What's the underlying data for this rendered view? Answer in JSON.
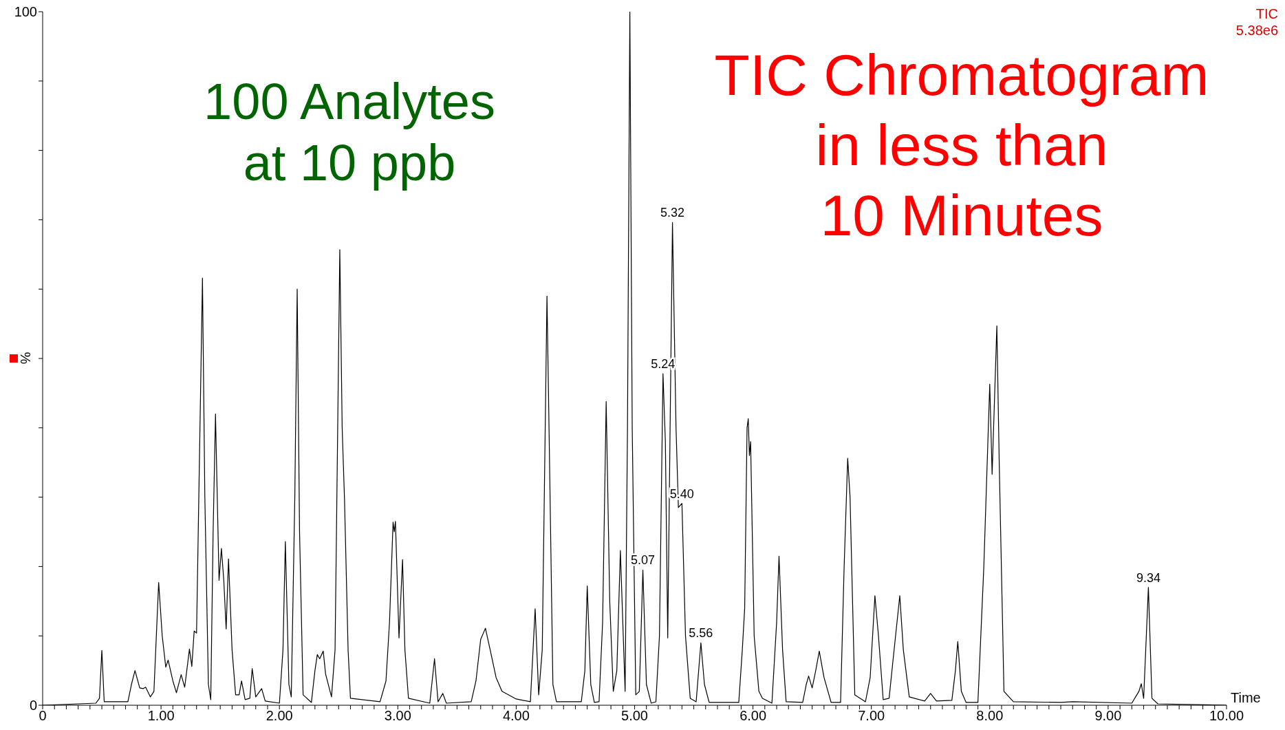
{
  "chart_data": {
    "type": "line",
    "title": "TIC Chromatogram\nin less than\n10 Minutes",
    "subtitle": "100 Analytes\nat 10 ppb",
    "xlabel": "Time",
    "ylabel": "%",
    "annotations": [
      "TIC",
      "5.38e6",
      {
        "text": "5.07",
        "x": 5.07,
        "y": 19.5
      },
      {
        "text": "5.24",
        "x": 5.24,
        "y": 47.8
      },
      {
        "text": "5.32",
        "x": 5.32,
        "y": 69.6
      },
      {
        "text": "5.40",
        "x": 5.4,
        "y": 29.1
      },
      {
        "text": "5.56",
        "x": 5.56,
        "y": 9
      },
      {
        "text": "9.34",
        "x": 9.34,
        "y": 17
      }
    ],
    "x": [
      0,
      0.45,
      0.48,
      0.5,
      0.52,
      0.72,
      0.75,
      0.78,
      0.82,
      0.85,
      0.87,
      0.91,
      0.94,
      0.98,
      1.01,
      1.04,
      1.06,
      1.1,
      1.13,
      1.17,
      1.2,
      1.24,
      1.26,
      1.28,
      1.3,
      1.35,
      1.37,
      1.4,
      1.42,
      1.44,
      1.46,
      1.49,
      1.51,
      1.53,
      1.55,
      1.57,
      1.6,
      1.63,
      1.66,
      1.68,
      1.71,
      1.75,
      1.77,
      1.8,
      1.85,
      1.88,
      2.0,
      2.03,
      2.05,
      2.08,
      2.1,
      2.13,
      2.15,
      2.17,
      2.2,
      2.27,
      2.3,
      2.32,
      2.34,
      2.37,
      2.39,
      2.44,
      2.47,
      2.51,
      2.53,
      2.55,
      2.58,
      2.6,
      2.85,
      2.9,
      2.93,
      2.96,
      2.97,
      2.98,
      3.01,
      3.04,
      3.06,
      3.09,
      3.27,
      3.31,
      3.34,
      3.38,
      3.41,
      3.62,
      3.66,
      3.7,
      3.74,
      3.78,
      3.83,
      3.88,
      4.0,
      4.12,
      4.16,
      4.19,
      4.22,
      4.26,
      4.28,
      4.31,
      4.34,
      4.55,
      4.58,
      4.6,
      4.63,
      4.66,
      4.7,
      4.73,
      4.76,
      4.79,
      4.82,
      4.85,
      4.88,
      4.92,
      4.94,
      4.96,
      4.98,
      5.01,
      5.04,
      5.07,
      5.1,
      5.14,
      5.18,
      5.21,
      5.24,
      5.26,
      5.28,
      5.3,
      5.32,
      5.35,
      5.37,
      5.4,
      5.43,
      5.47,
      5.52,
      5.56,
      5.59,
      5.63,
      5.88,
      5.91,
      5.93,
      5.95,
      5.96,
      5.97,
      5.98,
      6.01,
      6.05,
      6.08,
      6.16,
      6.2,
      6.22,
      6.25,
      6.28,
      6.42,
      6.45,
      6.47,
      6.5,
      6.53,
      6.56,
      6.6,
      6.66,
      6.74,
      6.77,
      6.8,
      6.82,
      6.86,
      6.95,
      6.99,
      7.03,
      7.06,
      7.1,
      7.15,
      7.18,
      7.24,
      7.27,
      7.32,
      7.45,
      7.5,
      7.55,
      7.68,
      7.71,
      7.73,
      7.76,
      7.8,
      7.9,
      7.95,
      8.0,
      8.02,
      8.06,
      8.08,
      8.12,
      8.2,
      8.6,
      8.7,
      9.2,
      9.26,
      9.28,
      9.3,
      9.34,
      9.37,
      9.42,
      10
    ],
    "series": [
      {
        "color": "#000000",
        "values": [
          0,
          0.3,
          1,
          7.9,
          0.5,
          0.5,
          3,
          5.0,
          2.5,
          2.4,
          2.6,
          1.2,
          2,
          17.7,
          10,
          5.5,
          6.5,
          3.5,
          1.8,
          4.4,
          2.6,
          8.1,
          5.6,
          10.7,
          10.4,
          61.6,
          30,
          3,
          0.8,
          25,
          42,
          18,
          22.6,
          18,
          11,
          21.1,
          8,
          1.5,
          1.5,
          3.5,
          0.8,
          1,
          5.3,
          1.2,
          2.4,
          0.6,
          0.3,
          8,
          23.6,
          3,
          1.2,
          30,
          60,
          25,
          1.5,
          0.4,
          5,
          7.3,
          6.7,
          7.8,
          4.5,
          1.2,
          8,
          65.7,
          40,
          29.5,
          8,
          1,
          0.5,
          3.5,
          12,
          26.4,
          25,
          26.5,
          9.7,
          21,
          8,
          1,
          0.3,
          6.7,
          0.5,
          1.7,
          0.3,
          0.5,
          3.5,
          9.5,
          11.1,
          8,
          4,
          2,
          0.9,
          0.5,
          13.9,
          1.5,
          8,
          59,
          37,
          3,
          0.5,
          0.5,
          5,
          17.2,
          3,
          0.4,
          0.5,
          12,
          43.8,
          15,
          2,
          5,
          22.3,
          2,
          40,
          100,
          40,
          1.5,
          2,
          19.5,
          3,
          0.3,
          0.5,
          10,
          47.8,
          38,
          9.7,
          40,
          69.6,
          40,
          28.5,
          29.1,
          10,
          1,
          0.5,
          9,
          3,
          0.4,
          0.4,
          8,
          14,
          40,
          41.3,
          36,
          38,
          10,
          2,
          1,
          0.3,
          12,
          21.5,
          8,
          0.5,
          0.4,
          3,
          4.2,
          2.5,
          5,
          7.8,
          4,
          0.4,
          0.4,
          20,
          35.6,
          30,
          1.5,
          0.5,
          4,
          15.8,
          10,
          0.8,
          1,
          6,
          15.8,
          8,
          1.2,
          0.6,
          1.7,
          0.6,
          0.7,
          5,
          9.2,
          2,
          0.4,
          0.4,
          20,
          46.3,
          33.3,
          54.7,
          35,
          2,
          0.5,
          0.4,
          0.5,
          0.3,
          2,
          3.1,
          1,
          17,
          1,
          0.2,
          0
        ]
      }
    ],
    "xlim": [
      0,
      10
    ],
    "ylim": [
      0,
      100
    ],
    "xticks": [
      0,
      {
        "value": 0.1,
        "label": null
      },
      {
        "value": 0.2,
        "label": null
      },
      {
        "value": 0.3,
        "label": null
      },
      {
        "value": 0.4,
        "label": null
      },
      {
        "value": 0.5,
        "label": null
      },
      {
        "value": 0.6,
        "label": null
      },
      {
        "value": 0.7,
        "label": null
      },
      {
        "value": 0.8,
        "label": null
      },
      {
        "value": 0.9,
        "label": null
      },
      {
        "value": 1,
        "label": "1.00"
      },
      {
        "value": 1.1,
        "label": null
      },
      {
        "value": 1.2,
        "label": null
      },
      {
        "value": 1.3,
        "label": null
      },
      {
        "value": 1.4,
        "label": null
      },
      {
        "value": 1.5,
        "label": null
      },
      {
        "value": 1.6,
        "label": null
      },
      {
        "value": 1.7,
        "label": null
      },
      {
        "value": 1.8,
        "label": null
      },
      {
        "value": 1.9,
        "label": null
      },
      {
        "value": 2,
        "label": "2.00"
      },
      {
        "value": 2.1,
        "label": null
      },
      {
        "value": 2.2,
        "label": null
      },
      {
        "value": 2.3,
        "label": null
      },
      {
        "value": 2.4,
        "label": null
      },
      {
        "value": 2.5,
        "label": null
      },
      {
        "value": 2.6,
        "label": null
      },
      {
        "value": 2.7,
        "label": null
      },
      {
        "value": 2.8,
        "label": null
      },
      {
        "value": 2.9,
        "label": null
      },
      {
        "value": 3,
        "label": "3.00"
      },
      {
        "value": 3.1,
        "label": null
      },
      {
        "value": 3.2,
        "label": null
      },
      {
        "value": 3.3,
        "label": null
      },
      {
        "value": 3.4,
        "label": null
      },
      {
        "value": 3.5,
        "label": null
      },
      {
        "value": 3.6,
        "label": null
      },
      {
        "value": 3.7,
        "label": null
      },
      {
        "value": 3.8,
        "label": null
      },
      {
        "value": 3.9,
        "label": null
      },
      {
        "value": 4,
        "label": "4.00"
      },
      {
        "value": 4.1,
        "label": null
      },
      {
        "value": 4.2,
        "label": null
      },
      {
        "value": 4.3,
        "label": null
      },
      {
        "value": 4.4,
        "label": null
      },
      {
        "value": 4.5,
        "label": null
      },
      {
        "value": 4.6,
        "label": null
      },
      {
        "value": 4.7,
        "label": null
      },
      {
        "value": 4.8,
        "label": null
      },
      {
        "value": 4.9,
        "label": null
      },
      {
        "value": 5,
        "label": "5.00"
      },
      {
        "value": 5.1,
        "label": null
      },
      {
        "value": 5.2,
        "label": null
      },
      {
        "value": 5.3,
        "label": null
      },
      {
        "value": 5.4,
        "label": null
      },
      {
        "value": 5.5,
        "label": null
      },
      {
        "value": 5.6,
        "label": null
      },
      {
        "value": 5.7,
        "label": null
      },
      {
        "value": 5.8,
        "label": null
      },
      {
        "value": 5.9,
        "label": null
      },
      {
        "value": 6,
        "label": "6.00"
      },
      {
        "value": 6.1,
        "label": null
      },
      {
        "value": 6.2,
        "label": null
      },
      {
        "value": 6.3,
        "label": null
      },
      {
        "value": 6.4,
        "label": null
      },
      {
        "value": 6.5,
        "label": null
      },
      {
        "value": 6.6,
        "label": null
      },
      {
        "value": 6.7,
        "label": null
      },
      {
        "value": 6.8,
        "label": null
      },
      {
        "value": 6.9,
        "label": null
      },
      {
        "value": 7,
        "label": "7.00"
      },
      {
        "value": 7.1,
        "label": null
      },
      {
        "value": 7.2,
        "label": null
      },
      {
        "value": 7.3,
        "label": null
      },
      {
        "value": 7.4,
        "label": null
      },
      {
        "value": 7.5,
        "label": null
      },
      {
        "value": 7.6,
        "label": null
      },
      {
        "value": 7.7,
        "label": null
      },
      {
        "value": 7.8,
        "label": null
      },
      {
        "value": 7.9,
        "label": null
      },
      {
        "value": 8,
        "label": "8.00"
      },
      {
        "value": 8.1,
        "label": null
      },
      {
        "value": 8.2,
        "label": null
      },
      {
        "value": 8.3,
        "label": null
      },
      {
        "value": 8.4,
        "label": null
      },
      {
        "value": 8.5,
        "label": null
      },
      {
        "value": 8.6,
        "label": null
      },
      {
        "value": 8.7,
        "label": null
      },
      {
        "value": 8.8,
        "label": null
      },
      {
        "value": 8.9,
        "label": null
      },
      {
        "value": 9,
        "label": "9.00"
      },
      {
        "value": 9.1,
        "label": null
      },
      {
        "value": 9.2,
        "label": null
      },
      {
        "value": 9.3,
        "label": null
      },
      {
        "value": 9.4,
        "label": null
      },
      {
        "value": 9.5,
        "label": null
      },
      {
        "value": 9.6,
        "label": null
      },
      {
        "value": 9.7,
        "label": null
      },
      {
        "value": 9.8,
        "label": null
      },
      {
        "value": 9.9,
        "label": null
      },
      {
        "value": 10,
        "label": "10.00"
      }
    ],
    "yticks": [
      0,
      {
        "value": 10,
        "label": null
      },
      {
        "value": 20,
        "label": null
      },
      {
        "value": 30,
        "label": null
      },
      {
        "value": 40,
        "label": null
      },
      {
        "value": 50,
        "label": null
      },
      {
        "value": 60,
        "label": null
      },
      {
        "value": 70,
        "label": null
      },
      {
        "value": 80,
        "label": null
      },
      {
        "value": 90,
        "label": null
      },
      100
    ]
  }
}
